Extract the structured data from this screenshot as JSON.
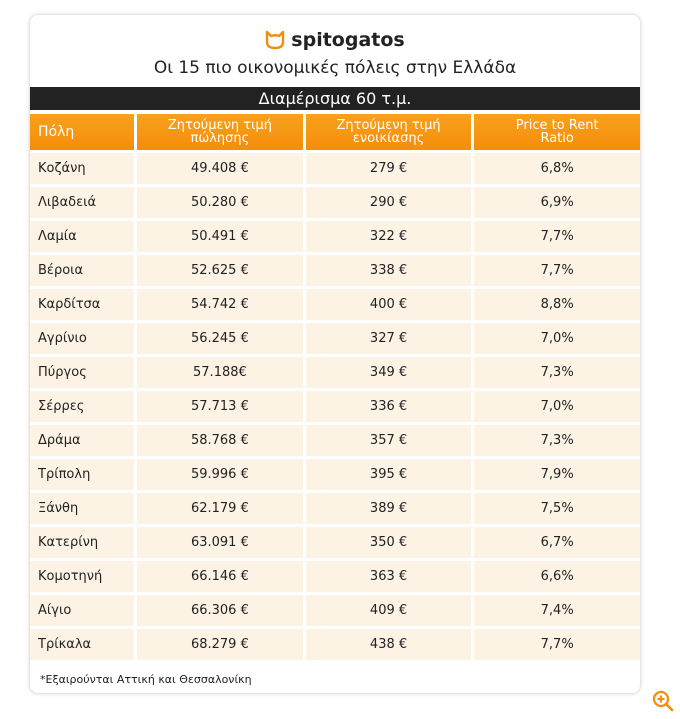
{
  "header": {
    "logo": "spitogatos",
    "title": "Οι 15 πιο οικονομικές πόλεις στην Ελλάδα",
    "subtitle": "Διαμέρισμα 60 τ.μ."
  },
  "table": {
    "columns": [
      "Πόλη",
      "Ζητούμενη τιμή πώλησης",
      "Ζητούμενη τιμή ενοικίασης",
      "Price to Rent Ratio"
    ],
    "rows": [
      [
        "Κοζάνη",
        "49.408 €",
        "279 €",
        "6,8%"
      ],
      [
        "Λιβαδειά",
        "50.280 €",
        "290 €",
        "6,9%"
      ],
      [
        "Λαμία",
        "50.491 €",
        "322 €",
        "7,7%"
      ],
      [
        "Βέροια",
        "52.625 €",
        "338 €",
        "7,7%"
      ],
      [
        "Καρδίτσα",
        "54.742 €",
        "400 €",
        "8,8%"
      ],
      [
        "Αγρίνιο",
        "56.245 €",
        "327 €",
        "7,0%"
      ],
      [
        "Πύργος",
        "57.188€",
        "349 €",
        "7,3%"
      ],
      [
        "Σέρρες",
        "57.713 €",
        "336 €",
        "7,0%"
      ],
      [
        "Δράμα",
        "58.768 €",
        "357 €",
        "7,3%"
      ],
      [
        "Τρίπολη",
        "59.996 €",
        "395 €",
        "7,9%"
      ],
      [
        "Ξάνθη",
        "62.179 €",
        "389 €",
        "7,5%"
      ],
      [
        "Κατερίνη",
        "63.091 €",
        "350 €",
        "6,7%"
      ],
      [
        "Κομοτηνή",
        "66.146 €",
        "363 €",
        "6,6%"
      ],
      [
        "Αίγιο",
        "66.306 €",
        "409 €",
        "7,4%"
      ],
      [
        "Τρίκαλα",
        "68.279 €",
        "438 €",
        "7,7%"
      ]
    ]
  },
  "footnote": "*Εξαιρούνται Αττική και Θεσσαλονίκη"
}
